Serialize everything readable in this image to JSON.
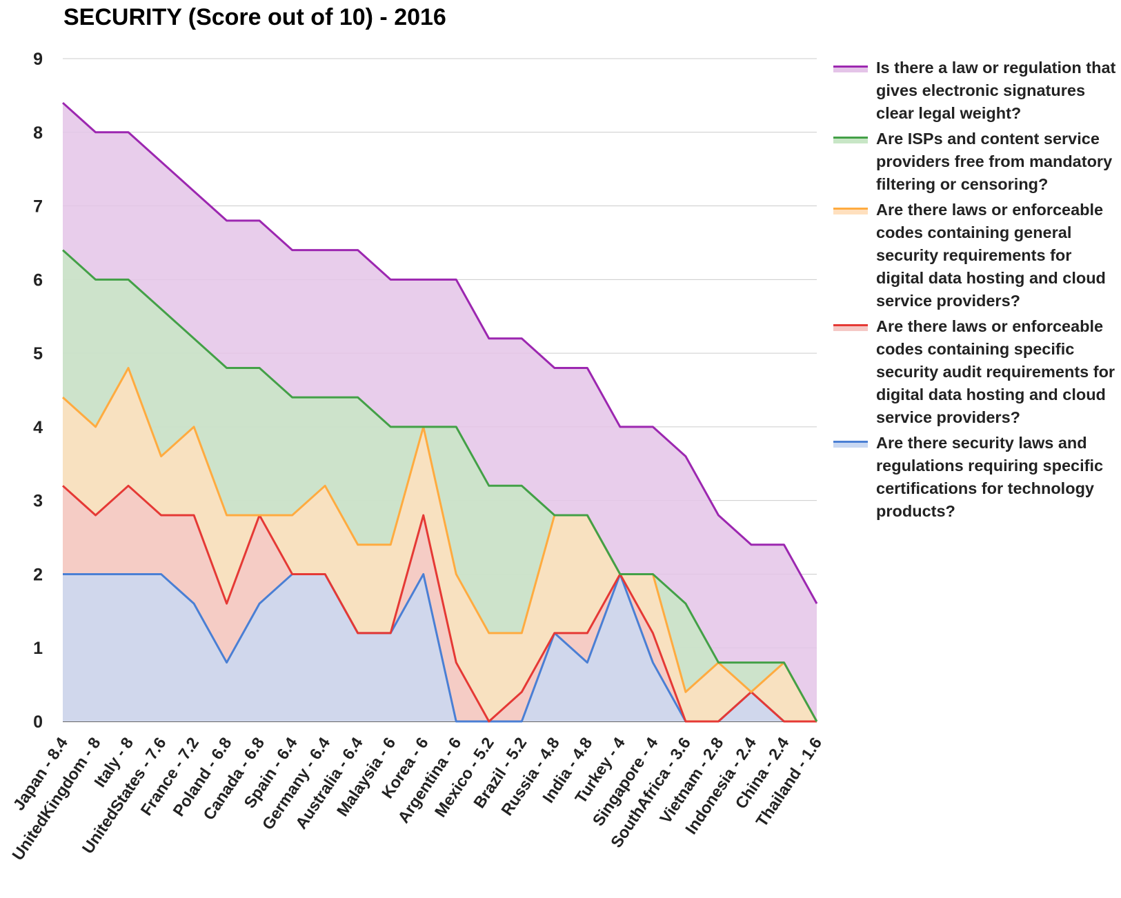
{
  "chart_data": {
    "type": "area",
    "stacked": false,
    "title": "SECURITY (Score out of 10) - 2016",
    "xlabel": "",
    "ylabel": "",
    "ylim": [
      0,
      9
    ],
    "yticks": [
      "0",
      "1",
      "2",
      "3",
      "4",
      "5",
      "6",
      "7",
      "8",
      "9"
    ],
    "grid": true,
    "legend_position": "right",
    "categories": [
      "Japan - 8.4",
      "UnitedKingdom - 8",
      "Italy - 8",
      "UnitedStates - 7.6",
      "France - 7.2",
      "Poland - 6.8",
      "Canada - 6.8",
      "Spain - 6.4",
      "Germany - 6.4",
      "Australia - 6.4",
      "Malaysia - 6",
      "Korea - 6",
      "Argentina - 6",
      "Mexico - 5.2",
      "Brazil - 5.2",
      "Russia - 4.8",
      "India - 4.8",
      "Turkey - 4",
      "Singapore - 4",
      "SouthAfrica - 3.6",
      "Vietnam - 2.8",
      "Indonesia - 2.4",
      "China - 2.4",
      "Thailand - 1.6"
    ],
    "series": [
      {
        "name": "Is there a law or regulation that gives electronic signatures clear legal weight?",
        "color": "#9c27b0",
        "fill": "#e4c4e8",
        "values": [
          8.4,
          8,
          8,
          7.6,
          7.2,
          6.8,
          6.8,
          6.4,
          6.4,
          6.4,
          6,
          6,
          6,
          5.2,
          5.2,
          4.8,
          4.8,
          4,
          4,
          3.6,
          2.8,
          2.4,
          2.4,
          1.6
        ]
      },
      {
        "name": "Are ISPs and content service providers free from mandatory filtering or censoring?",
        "color": "#43a047",
        "fill": "#c8e6c6",
        "values": [
          6.4,
          6,
          6,
          5.6,
          5.2,
          4.8,
          4.8,
          4.4,
          4.4,
          4.4,
          4,
          4,
          4,
          3.2,
          3.2,
          2.8,
          2.8,
          2,
          2,
          1.6,
          0.8,
          0.8,
          0.8,
          0
        ]
      },
      {
        "name": "Are there laws or enforceable codes containing general security requirements for digital data hosting and cloud service providers?",
        "color": "#ffab40",
        "fill": "#ffe0be",
        "values": [
          4.4,
          4,
          4.8,
          3.6,
          4,
          2.8,
          2.8,
          2.8,
          3.2,
          2.4,
          2.4,
          4,
          2,
          1.2,
          1.2,
          2.8,
          2.8,
          2,
          2,
          0.4,
          0.8,
          0.4,
          0.8,
          0
        ]
      },
      {
        "name": "Are there laws or enforceable codes containing specific security audit requirements for digital data hosting and cloud service providers?",
        "color": "#e53935",
        "fill": "#f5c8c5",
        "values": [
          3.2,
          2.8,
          3.2,
          2.8,
          2.8,
          1.6,
          2.8,
          2,
          2,
          1.2,
          1.2,
          2.8,
          0.8,
          0,
          0.4,
          1.2,
          1.2,
          2,
          1.2,
          0,
          0,
          0.4,
          0,
          0
        ]
      },
      {
        "name": "Are there security laws and regulations requiring specific certifications for technology products?",
        "color": "#4a7fd4",
        "fill": "#c9d8f2",
        "values": [
          2,
          2,
          2,
          2,
          1.6,
          0.8,
          1.6,
          2,
          2,
          1.2,
          1.2,
          2,
          0,
          0,
          0,
          1.2,
          0.8,
          2,
          0.8,
          0,
          0,
          0.4,
          0,
          0
        ]
      }
    ]
  }
}
